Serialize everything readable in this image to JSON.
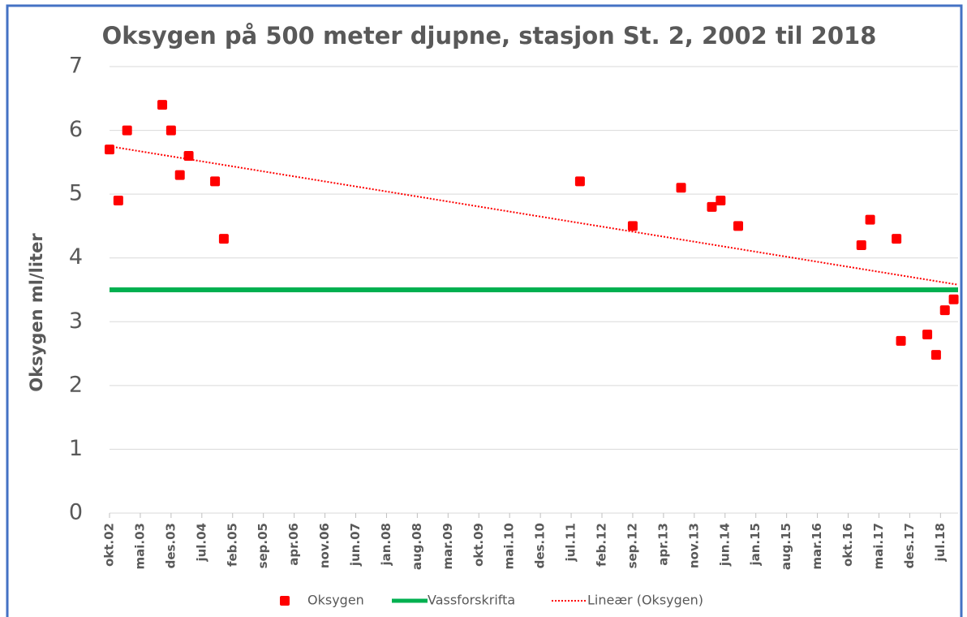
{
  "chart_data": {
    "type": "scatter",
    "title": "Oksygen på 500 meter djupne, stasjon St. 2, 2002 til 2018",
    "y_label": "Oksygen ml/liter",
    "xlim": [
      "2002-10",
      "2018-11"
    ],
    "xticks": [
      {
        "value": "2002-10",
        "label": "okt.02"
      },
      {
        "value": "2003-05",
        "label": "mai.03"
      },
      {
        "value": "2003-12",
        "label": "des.03"
      },
      {
        "value": "2004-07",
        "label": "jul.04"
      },
      {
        "value": "2005-02",
        "label": "feb.05"
      },
      {
        "value": "2005-09",
        "label": "sep.05"
      },
      {
        "value": "2006-04",
        "label": "apr.06"
      },
      {
        "value": "2006-11",
        "label": "nov.06"
      },
      {
        "value": "2007-06",
        "label": "jun.07"
      },
      {
        "value": "2008-01",
        "label": "jan.08"
      },
      {
        "value": "2008-08",
        "label": "aug.08"
      },
      {
        "value": "2009-03",
        "label": "mar.09"
      },
      {
        "value": "2009-10",
        "label": "okt.09"
      },
      {
        "value": "2010-05",
        "label": "mai.10"
      },
      {
        "value": "2010-12",
        "label": "des.10"
      },
      {
        "value": "2011-07",
        "label": "jul.11"
      },
      {
        "value": "2012-02",
        "label": "feb.12"
      },
      {
        "value": "2012-09",
        "label": "sep.12"
      },
      {
        "value": "2013-04",
        "label": "apr.13"
      },
      {
        "value": "2013-11",
        "label": "nov.13"
      },
      {
        "value": "2014-06",
        "label": "jun.14"
      },
      {
        "value": "2015-01",
        "label": "jan.15"
      },
      {
        "value": "2015-08",
        "label": "aug.15"
      },
      {
        "value": "2016-03",
        "label": "mar.16"
      },
      {
        "value": "2016-10",
        "label": "okt.16"
      },
      {
        "value": "2017-05",
        "label": "mai.17"
      },
      {
        "value": "2017-12",
        "label": "des.17"
      },
      {
        "value": "2018-07",
        "label": "jul.18"
      }
    ],
    "ylim": [
      0,
      7
    ],
    "yticks": [
      0,
      1,
      2,
      3,
      4,
      5,
      6,
      7
    ],
    "grid": true,
    "series": [
      {
        "name": "Oksygen",
        "color": "#ff0000",
        "marker": "square",
        "x": [
          "2002-10",
          "2002-12",
          "2003-02",
          "2003-10",
          "2003-12",
          "2004-02",
          "2004-04",
          "2004-10",
          "2004-12",
          "2011-09",
          "2012-09",
          "2013-08",
          "2014-03",
          "2014-05",
          "2014-09",
          "2017-01",
          "2017-03",
          "2017-09",
          "2017-10",
          "2018-04",
          "2018-06",
          "2018-08",
          "2018-10"
        ],
        "values": [
          5.7,
          4.9,
          6.0,
          6.4,
          6.0,
          5.3,
          5.6,
          5.2,
          4.3,
          5.2,
          4.5,
          5.1,
          4.8,
          4.9,
          4.5,
          4.2,
          4.6,
          4.3,
          2.7,
          2.8,
          2.48,
          3.18,
          3.35
        ]
      },
      {
        "name": "Vassforskrifta",
        "color": "#00b050",
        "line_style": "solid",
        "x": [
          "2002-10",
          "2018-11"
        ],
        "values": [
          3.5,
          3.5
        ]
      },
      {
        "name": "Lineær (Oksygen)",
        "color": "#ff0000",
        "line_style": "dotted",
        "x": [
          "2002-10",
          "2018-11"
        ],
        "values": [
          5.75,
          3.58
        ]
      }
    ]
  }
}
